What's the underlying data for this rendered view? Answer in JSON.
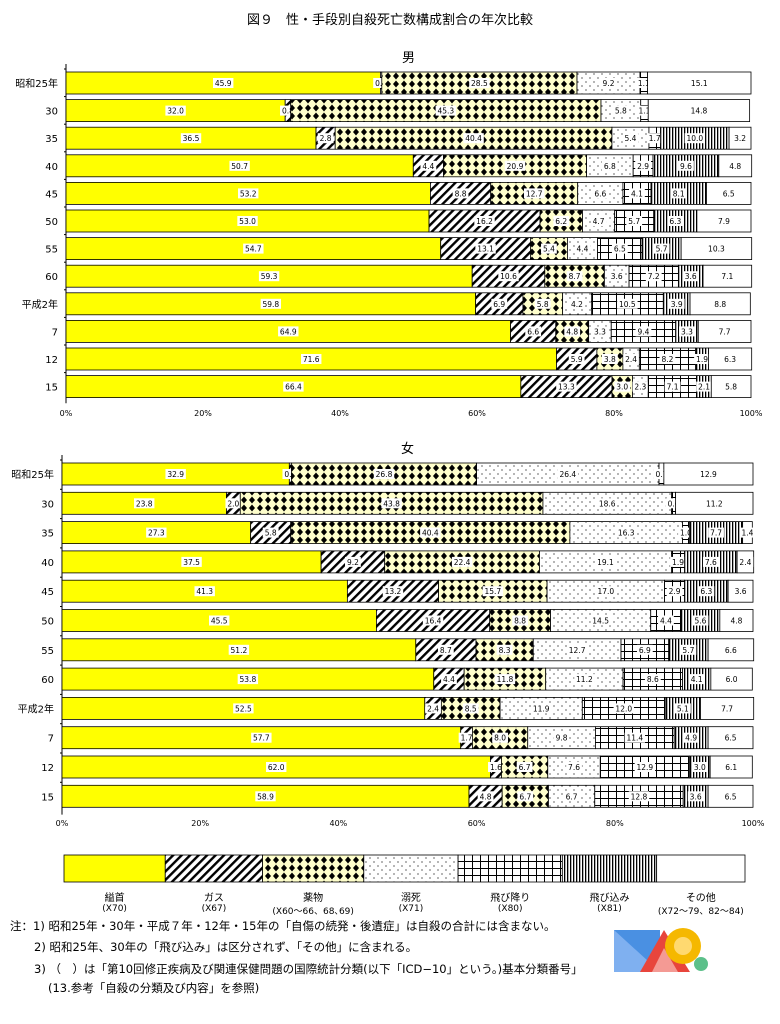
{
  "title": "図９　性・手段別自殺死亡数構成割合の年次比較",
  "colors": {
    "hanging": "#FFFF00",
    "drug_bg": "#FFFFCC",
    "line": "#000000",
    "label_bg": "#FFFFFF"
  },
  "legend": {
    "items": [
      {
        "name": "縊首",
        "code": "(X70)",
        "pattern": "solid-yellow"
      },
      {
        "name": "ガス",
        "code": "(X67)",
        "pattern": "diagonal-stripes"
      },
      {
        "name": "薬物",
        "code": "(X60～66、68､69)",
        "pattern": "diamonds"
      },
      {
        "name": "溺死",
        "code": "(X71)",
        "pattern": "dots"
      },
      {
        "name": "飛び降り",
        "code": "(X80)",
        "pattern": "grid"
      },
      {
        "name": "飛び込み",
        "code": "(X81)",
        "pattern": "vertical-stripes"
      },
      {
        "name": "その他",
        "code": "(X72～79、82～84)",
        "pattern": "white"
      }
    ]
  },
  "notes": [
    "注：1) 昭和25年・30年・平成７年・12年・15年の「自傷の続発・後遺症」は自殺の合計には含まない。",
    "2) 昭和25年、30年の「飛び込み」は区分されず、「その他」に含まれる。",
    "3) （　）は「第10回修正疾病及び関連保健問題の国際統計分類(以下「ICD−10」という。)基本分類番号」",
    "(13.参考「自殺の分類及び内容」を参照)"
  ],
  "chart_data": [
    {
      "type": "bar",
      "orientation": "horizontal",
      "stacked": true,
      "title": "男",
      "xlim": [
        0,
        100
      ],
      "xticks": [
        "0%",
        "20%",
        "40%",
        "60%",
        "80%",
        "100%"
      ],
      "categories": [
        "昭和25年",
        "30",
        "35",
        "40",
        "45",
        "50",
        "55",
        "60",
        "平成2年",
        "7",
        "12",
        "15"
      ],
      "series": [
        {
          "name": "縊首",
          "values": [
            45.9,
            32.0,
            36.5,
            50.7,
            53.2,
            53.0,
            54.7,
            59.3,
            59.8,
            64.9,
            71.6,
            66.4
          ]
        },
        {
          "name": "ガス",
          "values": [
            0.2,
            0.8,
            2.8,
            4.4,
            8.8,
            16.2,
            13.1,
            10.6,
            6.9,
            6.6,
            5.9,
            13.3
          ]
        },
        {
          "name": "薬物",
          "values": [
            28.5,
            45.3,
            40.4,
            20.9,
            12.7,
            6.2,
            5.4,
            8.7,
            5.8,
            4.8,
            3.8,
            3.0
          ]
        },
        {
          "name": "溺死",
          "values": [
            9.2,
            5.8,
            5.4,
            6.8,
            6.6,
            4.7,
            4.4,
            3.6,
            4.2,
            3.3,
            2.4,
            2.3
          ]
        },
        {
          "name": "飛び降り",
          "values": [
            1.1,
            1.1,
            1.7,
            2.9,
            4.1,
            5.7,
            6.5,
            7.2,
            10.5,
            9.4,
            8.2,
            7.1
          ]
        },
        {
          "name": "飛び込み",
          "values": [
            null,
            null,
            10.0,
            9.6,
            8.1,
            6.3,
            5.7,
            3.6,
            3.9,
            3.3,
            1.9,
            2.1
          ]
        },
        {
          "name": "その他",
          "values": [
            15.1,
            14.8,
            3.2,
            4.8,
            6.5,
            7.9,
            10.3,
            7.1,
            8.8,
            7.7,
            6.3,
            5.8
          ]
        }
      ]
    },
    {
      "type": "bar",
      "orientation": "horizontal",
      "stacked": true,
      "title": "女",
      "xlim": [
        0,
        100
      ],
      "xticks": [
        "0%",
        "20%",
        "40%",
        "60%",
        "80%",
        "100%"
      ],
      "categories": [
        "昭和25年",
        "30",
        "35",
        "40",
        "45",
        "50",
        "55",
        "60",
        "平成2年",
        "7",
        "12",
        "15"
      ],
      "series": [
        {
          "name": "縊首",
          "values": [
            32.9,
            23.8,
            27.3,
            37.5,
            41.3,
            45.5,
            51.2,
            53.8,
            52.5,
            57.7,
            62.0,
            58.9
          ]
        },
        {
          "name": "ガス",
          "values": [
            0.3,
            2.0,
            5.8,
            9.2,
            13.2,
            16.4,
            8.7,
            4.4,
            2.4,
            1.7,
            1.6,
            4.8
          ]
        },
        {
          "name": "薬物",
          "values": [
            26.8,
            43.8,
            40.4,
            22.4,
            15.7,
            8.8,
            8.3,
            11.8,
            8.5,
            8.0,
            6.7,
            6.7
          ]
        },
        {
          "name": "溺死",
          "values": [
            26.4,
            18.6,
            16.3,
            19.1,
            17.0,
            14.5,
            12.7,
            11.2,
            11.9,
            9.8,
            7.6,
            6.7
          ]
        },
        {
          "name": "飛び降り",
          "values": [
            0.7,
            0.6,
            1.0,
            1.9,
            2.9,
            4.4,
            6.9,
            8.6,
            12.0,
            11.4,
            12.9,
            12.8
          ]
        },
        {
          "name": "飛び込み",
          "values": [
            null,
            null,
            7.7,
            7.6,
            6.3,
            5.6,
            5.7,
            4.1,
            5.1,
            4.9,
            3.0,
            3.6
          ]
        },
        {
          "name": "その他",
          "values": [
            12.9,
            11.2,
            1.4,
            2.4,
            3.6,
            4.8,
            6.6,
            6.0,
            7.7,
            6.5,
            6.1,
            6.5
          ]
        }
      ]
    }
  ]
}
